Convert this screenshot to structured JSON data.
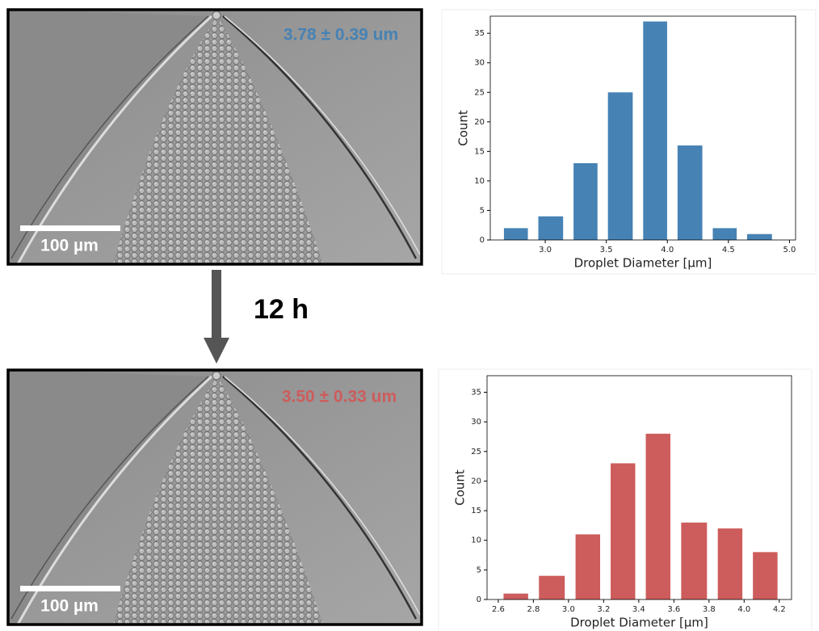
{
  "images": [
    {
      "label": "3.78 ± 0.39 um",
      "scale_bar": "100 µm"
    },
    {
      "label": "3.50 ± 0.33 um",
      "scale_bar": "100 µm"
    }
  ],
  "interval": "12 h",
  "chart_data": [
    {
      "type": "histogram",
      "xlabel": "Droplet Diameter [µm]",
      "ylabel": "Count",
      "color": "#4682b4",
      "bins": [
        2.62,
        2.9,
        3.19,
        3.47,
        3.76,
        4.04,
        4.33,
        4.61,
        4.9
      ],
      "values": [
        2,
        4,
        13,
        25,
        37,
        16,
        2,
        1
      ],
      "xlim": [
        2.55,
        5.05
      ],
      "ylim": [
        0,
        37.9
      ],
      "xticks": [
        {
          "value": 3,
          "label": "3.0"
        },
        3.5,
        {
          "value": 4,
          "label": "4.0"
        },
        4.5,
        {
          "value": 5,
          "label": "5.0"
        }
      ],
      "yticks": [
        0,
        5,
        10,
        15,
        20,
        25,
        30,
        35
      ]
    },
    {
      "type": "histogram",
      "xlabel": "Droplet Diameter [µm]",
      "ylabel": "Count",
      "color": "#cd5c5c",
      "bins": [
        2.6,
        2.8,
        3.01,
        3.21,
        3.41,
        3.61,
        3.82,
        4.02,
        4.22
      ],
      "values": [
        1,
        4,
        11,
        23,
        28,
        13,
        12,
        8
      ],
      "xlim": [
        2.536,
        4.27
      ],
      "ylim": [
        0,
        37.8
      ],
      "xticks": [
        2.6,
        2.8,
        {
          "value": 3,
          "label": "3.0"
        },
        3.2,
        3.4,
        3.6,
        3.8,
        {
          "value": 4,
          "label": "4.0"
        },
        4.2
      ],
      "yticks": [
        0,
        5,
        10,
        15,
        20,
        25,
        30,
        35
      ]
    }
  ]
}
